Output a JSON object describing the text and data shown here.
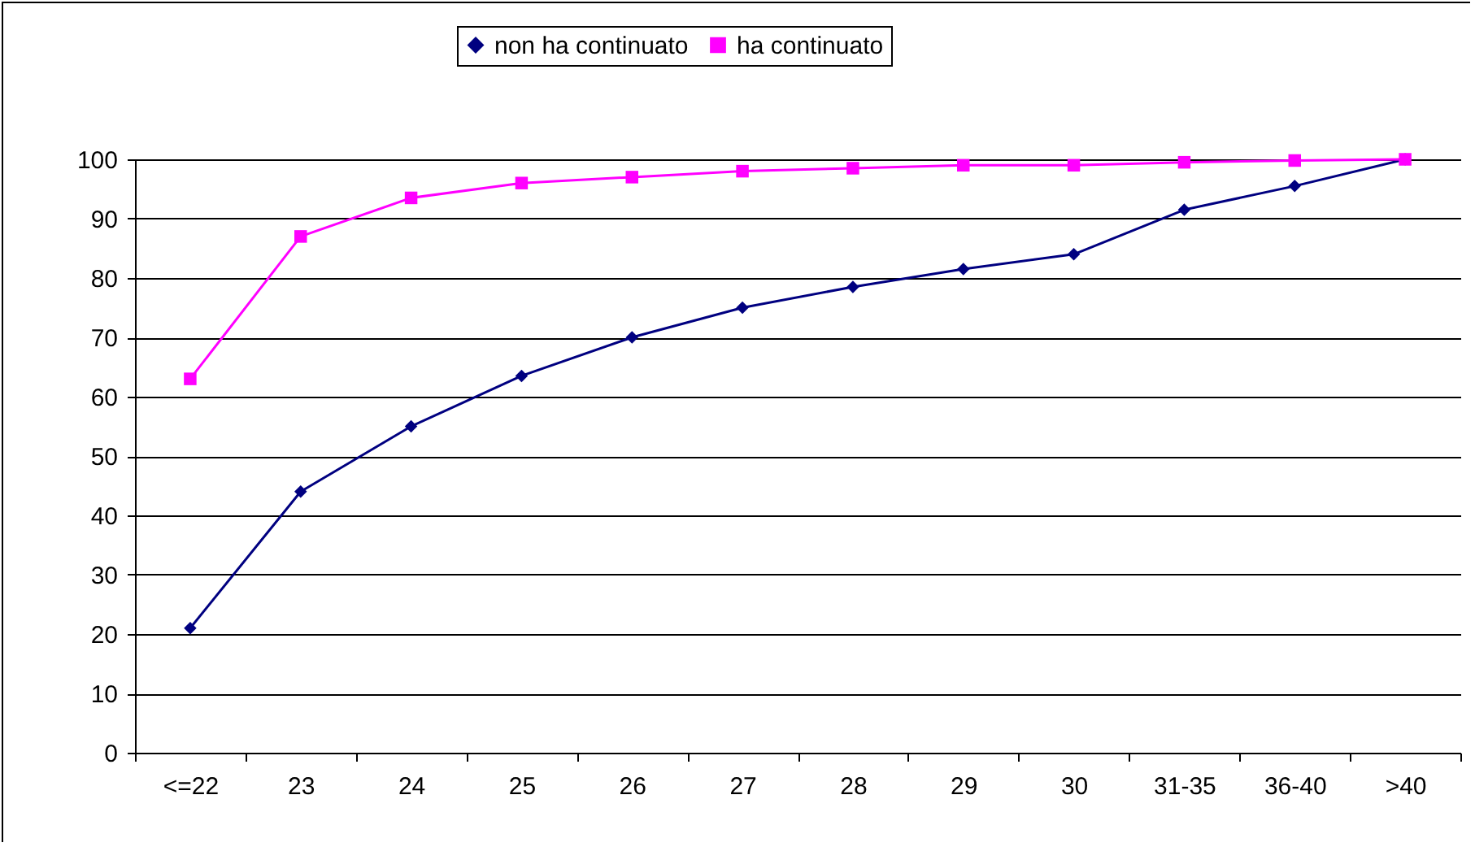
{
  "chart_data": {
    "type": "line",
    "categories": [
      "<=22",
      "23",
      "24",
      "25",
      "26",
      "27",
      "28",
      "29",
      "30",
      "31-35",
      "36-40",
      ">40"
    ],
    "series": [
      {
        "name": "non ha continuato",
        "color": "#000080",
        "marker": "diamond",
        "values": [
          21,
          44,
          55,
          63.5,
          70,
          75,
          78.5,
          81.5,
          84,
          91.5,
          95.5,
          100
        ]
      },
      {
        "name": "ha continuato",
        "color": "#ff00ff",
        "marker": "square",
        "values": [
          63,
          87,
          93.5,
          96,
          97,
          98,
          98.5,
          99,
          99,
          99.5,
          99.8,
          100
        ]
      }
    ],
    "ylim": [
      0,
      100
    ],
    "yticks": [
      0,
      10,
      20,
      30,
      40,
      50,
      60,
      70,
      80,
      90,
      100
    ],
    "grid": "y",
    "legend": "top"
  }
}
